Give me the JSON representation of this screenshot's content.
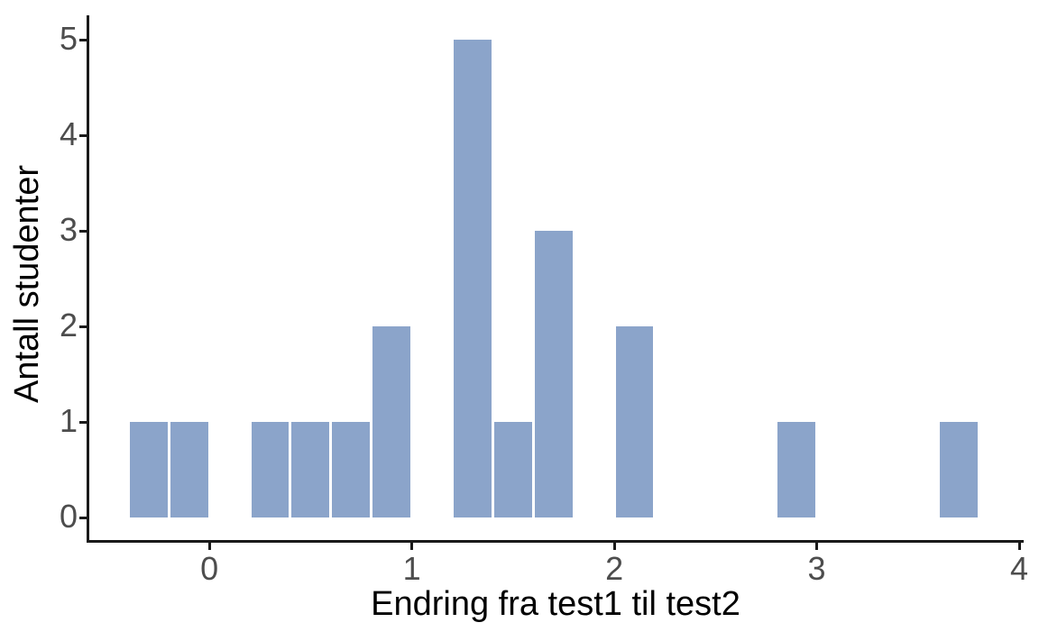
{
  "chart_data": {
    "type": "bar",
    "subtype": "histogram",
    "title": "",
    "xlabel": "Endring fra test1 til test2",
    "ylabel": "Antall studenter",
    "bin_width": 0.2,
    "bins": [
      {
        "x0": -0.4,
        "count": 1
      },
      {
        "x0": -0.2,
        "count": 1
      },
      {
        "x0": 0.2,
        "count": 1
      },
      {
        "x0": 0.4,
        "count": 1
      },
      {
        "x0": 0.6,
        "count": 1
      },
      {
        "x0": 0.8,
        "count": 2
      },
      {
        "x0": 1.2,
        "count": 5
      },
      {
        "x0": 1.4,
        "count": 1
      },
      {
        "x0": 1.6,
        "count": 3
      },
      {
        "x0": 2.0,
        "count": 2
      },
      {
        "x0": 2.8,
        "count": 1
      },
      {
        "x0": 3.6,
        "count": 1
      }
    ],
    "x_ticks": [
      0,
      1,
      2,
      3,
      4
    ],
    "y_ticks": [
      0,
      1,
      2,
      3,
      4,
      5
    ],
    "xlim": [
      -0.6,
      4.02
    ],
    "ylim": [
      -0.25,
      5.25
    ],
    "grid": false,
    "legend": "none",
    "colors": {
      "bar": "#8BA4CA",
      "axis": "#1A1A1A",
      "tick_label": "#4D4D4D",
      "title": "#000000",
      "background": "#FFFFFF"
    }
  }
}
